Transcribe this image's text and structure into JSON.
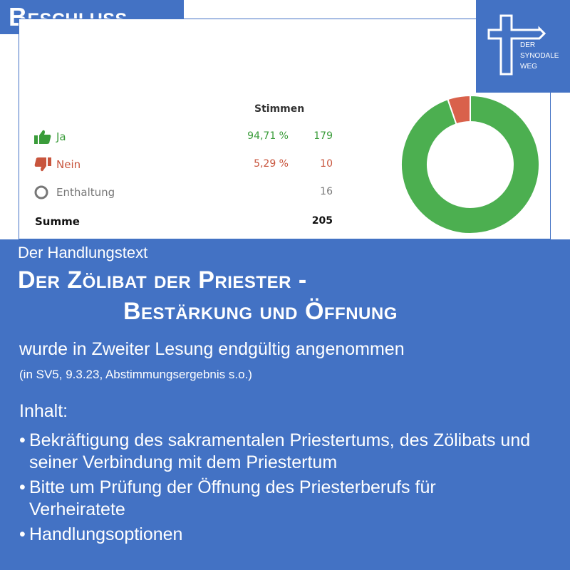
{
  "header": {
    "tab_label": "Beschluss"
  },
  "logo": {
    "lines": [
      "DER",
      "SYNODALE",
      "WEG"
    ]
  },
  "vote_table": {
    "column_header": "Stimmen",
    "rows": [
      {
        "label": "Ja",
        "percent": "94,71 %",
        "count": "179",
        "icon": "thumbs-up-icon",
        "color": "#3a9c3a"
      },
      {
        "label": "Nein",
        "percent": "5,29 %",
        "count": "10",
        "icon": "thumbs-down-icon",
        "color": "#c8553d"
      },
      {
        "label": "Enthaltung",
        "percent": "",
        "count": "16",
        "icon": "circle-icon",
        "color": "#777777"
      }
    ],
    "total": {
      "label": "Summe",
      "count": "205"
    }
  },
  "chart_data": {
    "type": "pie",
    "style": "donut",
    "categories": [
      "Ja",
      "Nein"
    ],
    "values": [
      94.71,
      5.29
    ],
    "colors": [
      "#4caf50",
      "#d9614b"
    ]
  },
  "main": {
    "intro": "Der Handlungstext",
    "title_line1": "Der Zölibat der Priester -",
    "title_line2": "Bestärkung und Öffnung",
    "subtitle": "wurde in Zweiter Lesung endgültig angenommen",
    "note": "(in SV5, 9.3.23, Abstimmungsergebnis s.o.)",
    "content_heading": "Inhalt:",
    "bullets": [
      "Bekräftigung des sakramentalen Priestertums, des Zölibats und seiner Verbindung mit dem Priestertum",
      "Bitte um Prüfung der Öffnung des Priesterberufs für Verheiratete",
      "Handlungsoptionen"
    ]
  },
  "colors": {
    "brand_blue": "#4372c4",
    "ja_green": "#3a9c3a",
    "nein_red": "#c8553d"
  }
}
